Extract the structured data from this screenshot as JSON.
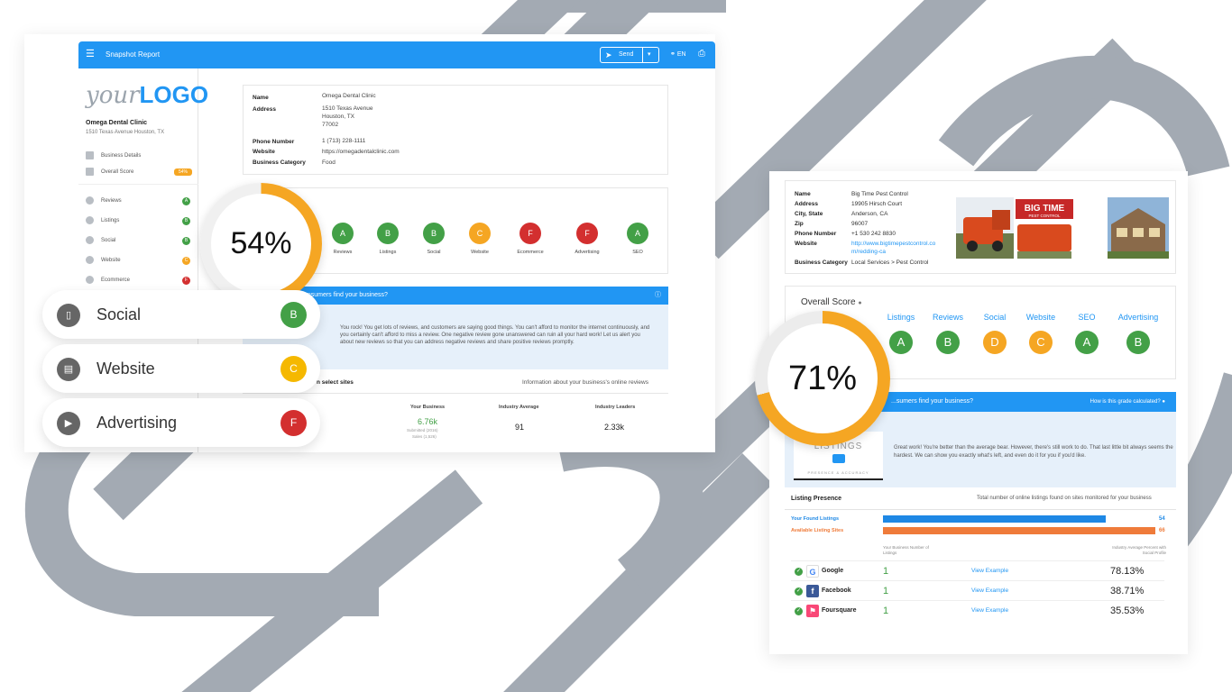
{
  "colors": {
    "accent": "#2196f3",
    "grade_green": "#43a047",
    "grade_orange": "#f5a623",
    "grade_red": "#d32f2f",
    "stripe": "#a3aab3"
  },
  "left": {
    "appbar": {
      "title": "Snapshot Report",
      "send_label": "Send",
      "lang": "EN",
      "menu_icon": "menu-icon",
      "send_icon": "send-icon",
      "globe_icon": "globe-icon",
      "print_icon": "print-icon"
    },
    "logo": {
      "your": "your",
      "logo": "LOGO"
    },
    "business": {
      "name": "Omega Dental Clinic",
      "address": "1510 Texas Avenue Houston, TX"
    },
    "sidebar": [
      {
        "label": "Business Details",
        "icon": "building-icon",
        "grade": ""
      },
      {
        "label": "Overall Score",
        "icon": "bar-chart-icon",
        "grade": "54%"
      },
      {
        "label": "Reviews",
        "icon": "star-icon",
        "grade": "A"
      },
      {
        "label": "Listings",
        "icon": "list-icon",
        "grade": "B"
      },
      {
        "label": "Social",
        "icon": "chat-icon",
        "grade": "B"
      },
      {
        "label": "Website",
        "icon": "website-icon",
        "grade": "C"
      },
      {
        "label": "Ecommerce",
        "icon": "cart-icon",
        "grade": "F"
      }
    ],
    "info": {
      "name_key": "Name",
      "name": "Omega Dental Clinic",
      "address_key": "Address",
      "address1": "1510 Texas Avenue",
      "address2": "Houston, TX",
      "address3": "77002",
      "phone_key": "Phone Number",
      "phone": "1 (713) 228-1111",
      "website_key": "Website",
      "website": "https://omegadentalclinic.com",
      "category_key": "Business Category",
      "category": "Food"
    },
    "score": "54%",
    "grades": [
      {
        "label": "Reviews",
        "grade": "A"
      },
      {
        "label": "Listings",
        "grade": "B"
      },
      {
        "label": "Social",
        "grade": "B"
      },
      {
        "label": "Website",
        "grade": "C"
      },
      {
        "label": "Ecommerce",
        "grade": "F"
      },
      {
        "label": "Advertising",
        "grade": "F"
      },
      {
        "label": "SEO",
        "grade": "A"
      }
    ],
    "banner": "...nsumers find your business?",
    "message": "You rock! You get lots of reviews, and customers are saying good things. You can't afford to monitor the internet continuously, and you certainly can't afford to miss a review. One negative review gone unanswered can ruin all your hard work! Let us alert you about new reviews so that you can address negative reviews and share positive reviews promptly.",
    "select_sites": "n select sites",
    "select_info": "Information about your business's online reviews",
    "table": {
      "headers": [
        "Your Business",
        "Industry Average",
        "Industry Leaders"
      ],
      "values": [
        "6.76k",
        "91",
        "2.33k"
      ],
      "sub1": "Submitted (2016)",
      "sub2": "Sales (1,526)"
    },
    "chips": [
      {
        "label": "Social",
        "grade": "B",
        "icon": "chat-icon"
      },
      {
        "label": "Website",
        "grade": "C",
        "icon": "website-icon"
      },
      {
        "label": "Advertising",
        "grade": "F",
        "icon": "megaphone-icon"
      }
    ]
  },
  "right": {
    "info": {
      "name_key": "Name",
      "name": "Big Time Pest Control",
      "address_key": "Address",
      "address": "19905 Hirsch Court",
      "city_key": "City, State",
      "city": "Anderson, CA",
      "zip_key": "Zip",
      "zip": "96007",
      "phone_key": "Phone Number",
      "phone": "+1 530 242 8830",
      "website_key": "Website",
      "website1": "http://www.bigtimepestcontrol.co",
      "website2": "m/redding-ca",
      "category_key": "Business Category",
      "category": "Local Services > Pest Control"
    },
    "photo_text": {
      "big": "BIG TIME",
      "small": "PEST CONTROL"
    },
    "overall_title": "Overall Score",
    "score": "71%",
    "grades": [
      {
        "label": "Listings",
        "grade": "A"
      },
      {
        "label": "Reviews",
        "grade": "B"
      },
      {
        "label": "Social",
        "grade": "D"
      },
      {
        "label": "Website",
        "grade": "C"
      },
      {
        "label": "SEO",
        "grade": "A"
      },
      {
        "label": "Advertising",
        "grade": "B"
      }
    ],
    "banner": "...sumers find your business?",
    "banner_right": "How is this grade calculated?",
    "video": {
      "line1": "LISTINGS",
      "line2": "PRESENCE & ACCURACY"
    },
    "message": "Great work! You're better than the average bear. However, there's still work to do. That last little bit always seems the hardest. We can show you exactly what's left, and even do it for you if you'd like.",
    "listing_presence": "Listing Presence",
    "listing_presence_right": "Total number of online listings found on sites monitored for your business",
    "bars": [
      {
        "label": "Your Found Listings",
        "value": 54,
        "color": "#1e88e5"
      },
      {
        "label": "Available Listing Sites",
        "value": 66,
        "color": "#ef7b3a"
      }
    ],
    "col_left": "Your Business Number of Listings",
    "col_right": "Industry Average Percent with Social Profile",
    "rows": [
      {
        "site": "Google",
        "count": "1",
        "link": "View Example",
        "pct": "78.13%",
        "icon": "google-icon"
      },
      {
        "site": "Facebook",
        "count": "1",
        "link": "View Example",
        "pct": "38.71%",
        "icon": "facebook-icon"
      },
      {
        "site": "Foursquare",
        "count": "1",
        "link": "View Example",
        "pct": "35.53%",
        "icon": "foursquare-icon"
      }
    ]
  }
}
